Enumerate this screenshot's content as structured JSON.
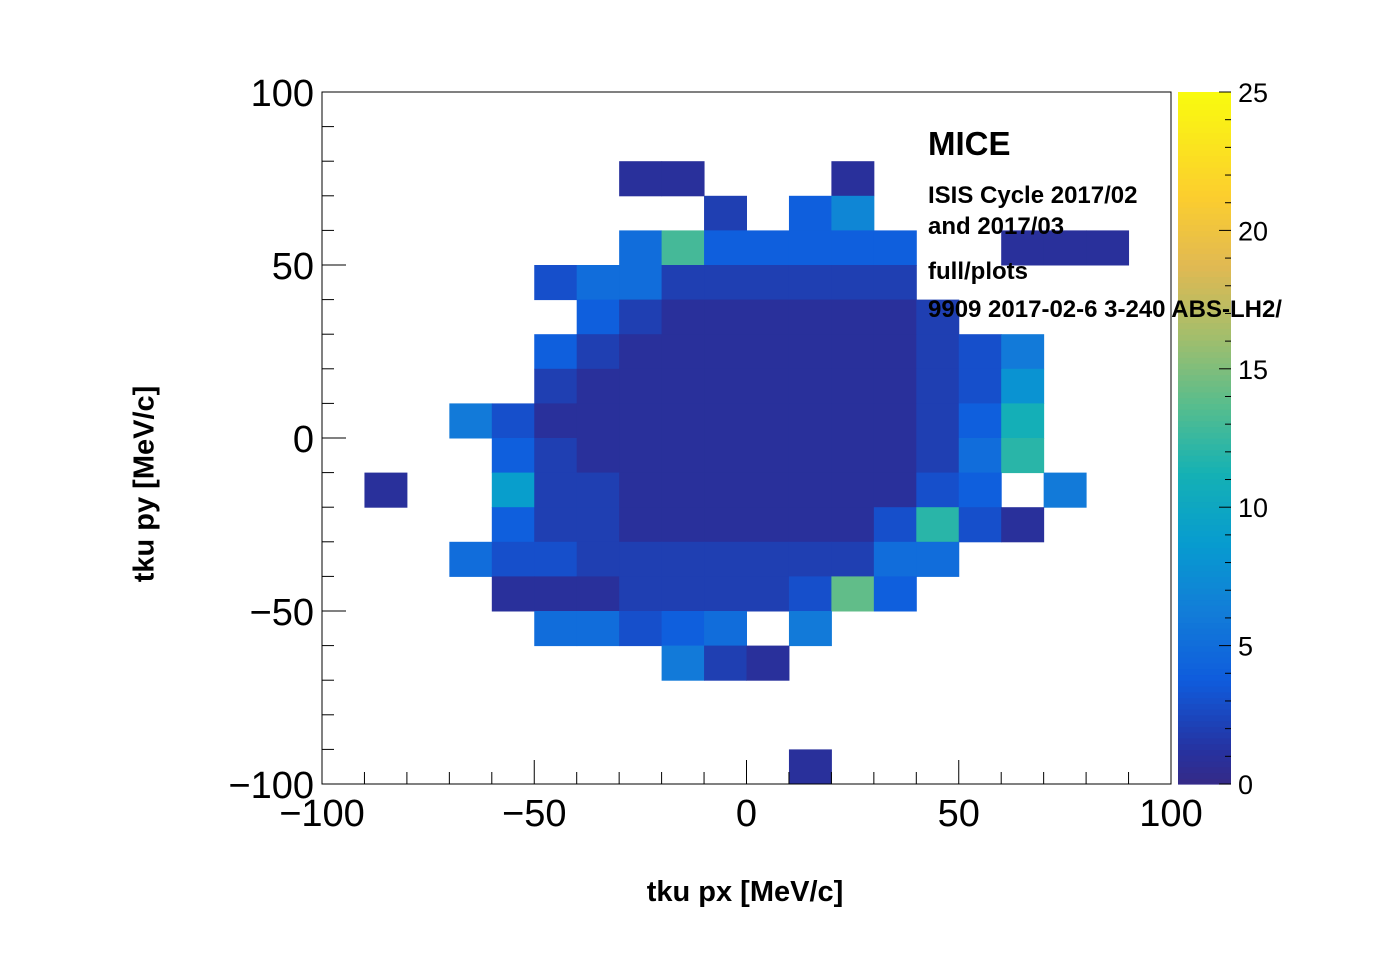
{
  "chart_data": {
    "type": "heatmap",
    "title": "",
    "xlabel": "tku px [MeV/c]",
    "ylabel": "tku py [MeV/c]",
    "xlim": [
      -100,
      100
    ],
    "ylim": [
      -100,
      100
    ],
    "zlim": [
      0,
      25
    ],
    "bin_width": 10,
    "x_ticks": [
      "−100",
      "−50",
      "0",
      "50",
      "100"
    ],
    "y_ticks": [
      "−100",
      "−50",
      "0",
      "50",
      "100"
    ],
    "z_ticks": [
      "0",
      "5",
      "10",
      "15",
      "20",
      "25"
    ],
    "colormap": "parula",
    "grid": false,
    "annotations": {
      "title": "MICE",
      "line1": "ISIS Cycle 2017/02",
      "line2": "and 2017/03",
      "line3": "full/plots",
      "line4": "9909 2017-02-6 3-240 ABS-LH2/"
    },
    "y_bins_low_edges": [
      70,
      60,
      50,
      40,
      30,
      20,
      10,
      0,
      -10,
      -20,
      -30,
      -40,
      -50,
      -60,
      -70,
      -100
    ],
    "rows": [
      {
        "y": 70,
        "x0": -30,
        "vals": [
          1,
          1,
          0,
          0,
          0,
          1
        ]
      },
      {
        "y": 60,
        "x0": -10,
        "vals": [
          2,
          0,
          4,
          7
        ]
      },
      {
        "y": 50,
        "x0": -30,
        "vals": [
          5,
          13,
          4,
          4,
          4,
          4,
          4,
          0,
          0,
          1,
          1,
          1
        ]
      },
      {
        "y": 40,
        "x0": -50,
        "vals": [
          3,
          5,
          5,
          2,
          2,
          2,
          2,
          2,
          2
        ]
      },
      {
        "y": 30,
        "x0": -40,
        "vals": [
          4,
          2,
          1,
          1,
          1,
          1,
          1,
          1,
          2
        ]
      },
      {
        "y": 20,
        "x0": -50,
        "vals": [
          4,
          2,
          1,
          1,
          1,
          1,
          1,
          1,
          1,
          2,
          3,
          6
        ]
      },
      {
        "y": 10,
        "x0": -50,
        "vals": [
          2,
          1,
          1,
          1,
          1,
          1,
          1,
          1,
          1,
          2,
          3,
          8
        ]
      },
      {
        "y": 0,
        "x0": -70,
        "vals": [
          6,
          3,
          1,
          1,
          1,
          1,
          1,
          1,
          1,
          1,
          1,
          2,
          4,
          11
        ]
      },
      {
        "y": -10,
        "x0": -60,
        "vals": [
          4,
          2,
          1,
          1,
          1,
          1,
          1,
          1,
          1,
          1,
          2,
          5,
          12
        ]
      },
      {
        "y": -20,
        "x0": -100,
        "vals": [
          0,
          1,
          0,
          0,
          9,
          2,
          2,
          1,
          1,
          1,
          1,
          1,
          1,
          1,
          3,
          4,
          0,
          6
        ]
      },
      {
        "y": -30,
        "x0": -60,
        "vals": [
          4,
          2,
          2,
          1,
          1,
          1,
          1,
          1,
          1,
          3,
          12,
          3,
          1
        ]
      },
      {
        "y": -40,
        "x0": -70,
        "vals": [
          5,
          3,
          3,
          2,
          2,
          2,
          2,
          2,
          2,
          2,
          5,
          5
        ]
      },
      {
        "y": -50,
        "x0": -60,
        "vals": [
          1,
          1,
          1,
          2,
          2,
          2,
          2,
          3,
          14,
          4
        ]
      },
      {
        "y": -60,
        "x0": -50,
        "vals": [
          5,
          5,
          3,
          4,
          5,
          0,
          6
        ]
      },
      {
        "y": -70,
        "x0": -20,
        "vals": [
          6,
          2,
          1
        ]
      },
      {
        "y": -100,
        "x0": 10,
        "vals": [
          1
        ]
      }
    ]
  }
}
